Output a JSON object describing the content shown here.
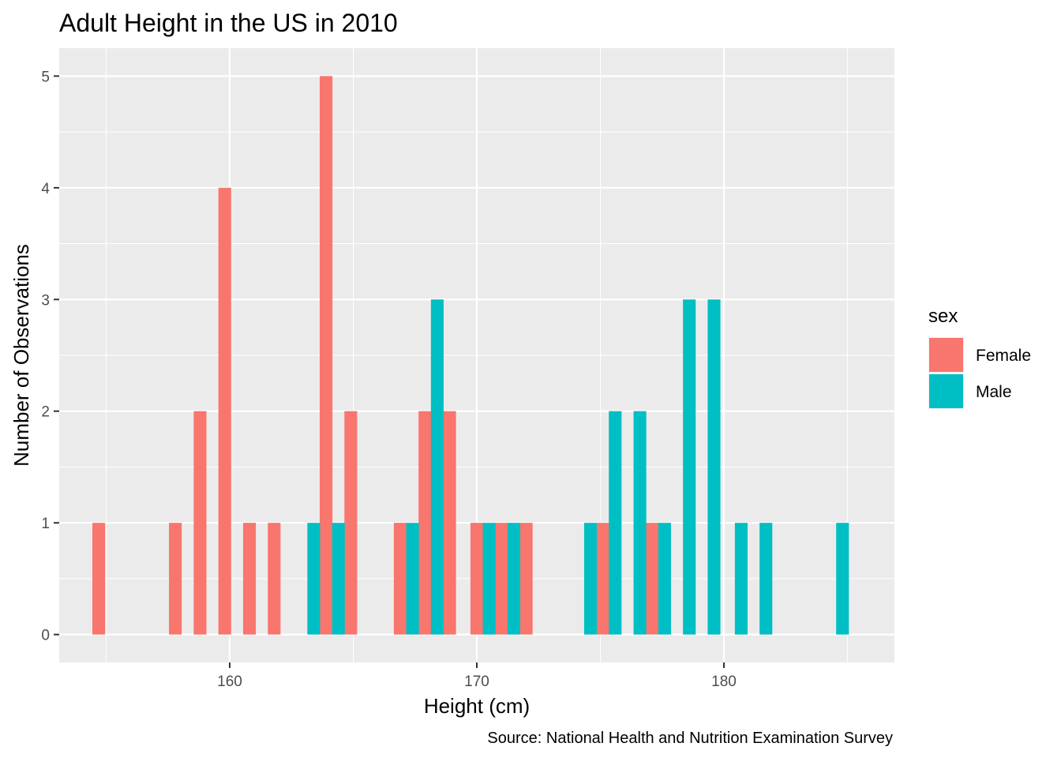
{
  "chart_data": {
    "type": "bar",
    "title": "Adult Height in the US in 2010",
    "xlabel": "Height (cm)",
    "ylabel": "Number of Observations",
    "caption": "Source: National Health and Nutrition Examination Survey",
    "xlim": [
      153.1,
      186.9
    ],
    "ylim": [
      -0.25,
      5.25
    ],
    "bin_width": 1.03,
    "x_ticks": [
      160,
      170,
      180
    ],
    "x_tick_labels": [
      "160",
      "170",
      "180"
    ],
    "y_ticks": [
      0,
      1,
      2,
      3,
      4,
      5
    ],
    "y_tick_labels": [
      "0",
      "1",
      "2",
      "3",
      "4",
      "5"
    ],
    "grid": true,
    "legend": {
      "title": "sex",
      "position": "right",
      "entries": [
        "Female",
        "Male"
      ]
    },
    "series": [
      {
        "name": "Female",
        "color": "#F8766D",
        "points": [
          {
            "x": 154.7,
            "y": 1
          },
          {
            "x": 157.8,
            "y": 1
          },
          {
            "x": 158.8,
            "y": 2
          },
          {
            "x": 159.8,
            "y": 4
          },
          {
            "x": 160.8,
            "y": 1
          },
          {
            "x": 161.8,
            "y": 1
          },
          {
            "x": 163.9,
            "y": 5
          },
          {
            "x": 164.9,
            "y": 2
          },
          {
            "x": 166.9,
            "y": 1
          },
          {
            "x": 167.9,
            "y": 2
          },
          {
            "x": 168.9,
            "y": 2
          },
          {
            "x": 170.0,
            "y": 1
          },
          {
            "x": 171.0,
            "y": 1
          },
          {
            "x": 172.0,
            "y": 1
          },
          {
            "x": 175.1,
            "y": 1
          },
          {
            "x": 177.1,
            "y": 1
          }
        ]
      },
      {
        "name": "Male",
        "color": "#00BFC4",
        "points": [
          {
            "x": 163.4,
            "y": 1
          },
          {
            "x": 164.4,
            "y": 1
          },
          {
            "x": 167.4,
            "y": 1
          },
          {
            "x": 168.4,
            "y": 3
          },
          {
            "x": 170.5,
            "y": 1
          },
          {
            "x": 171.5,
            "y": 1
          },
          {
            "x": 174.6,
            "y": 1
          },
          {
            "x": 175.6,
            "y": 2
          },
          {
            "x": 176.6,
            "y": 2
          },
          {
            "x": 177.6,
            "y": 1
          },
          {
            "x": 178.6,
            "y": 3
          },
          {
            "x": 179.6,
            "y": 3
          },
          {
            "x": 180.7,
            "y": 1
          },
          {
            "x": 181.7,
            "y": 1
          },
          {
            "x": 184.8,
            "y": 1
          }
        ]
      }
    ]
  }
}
